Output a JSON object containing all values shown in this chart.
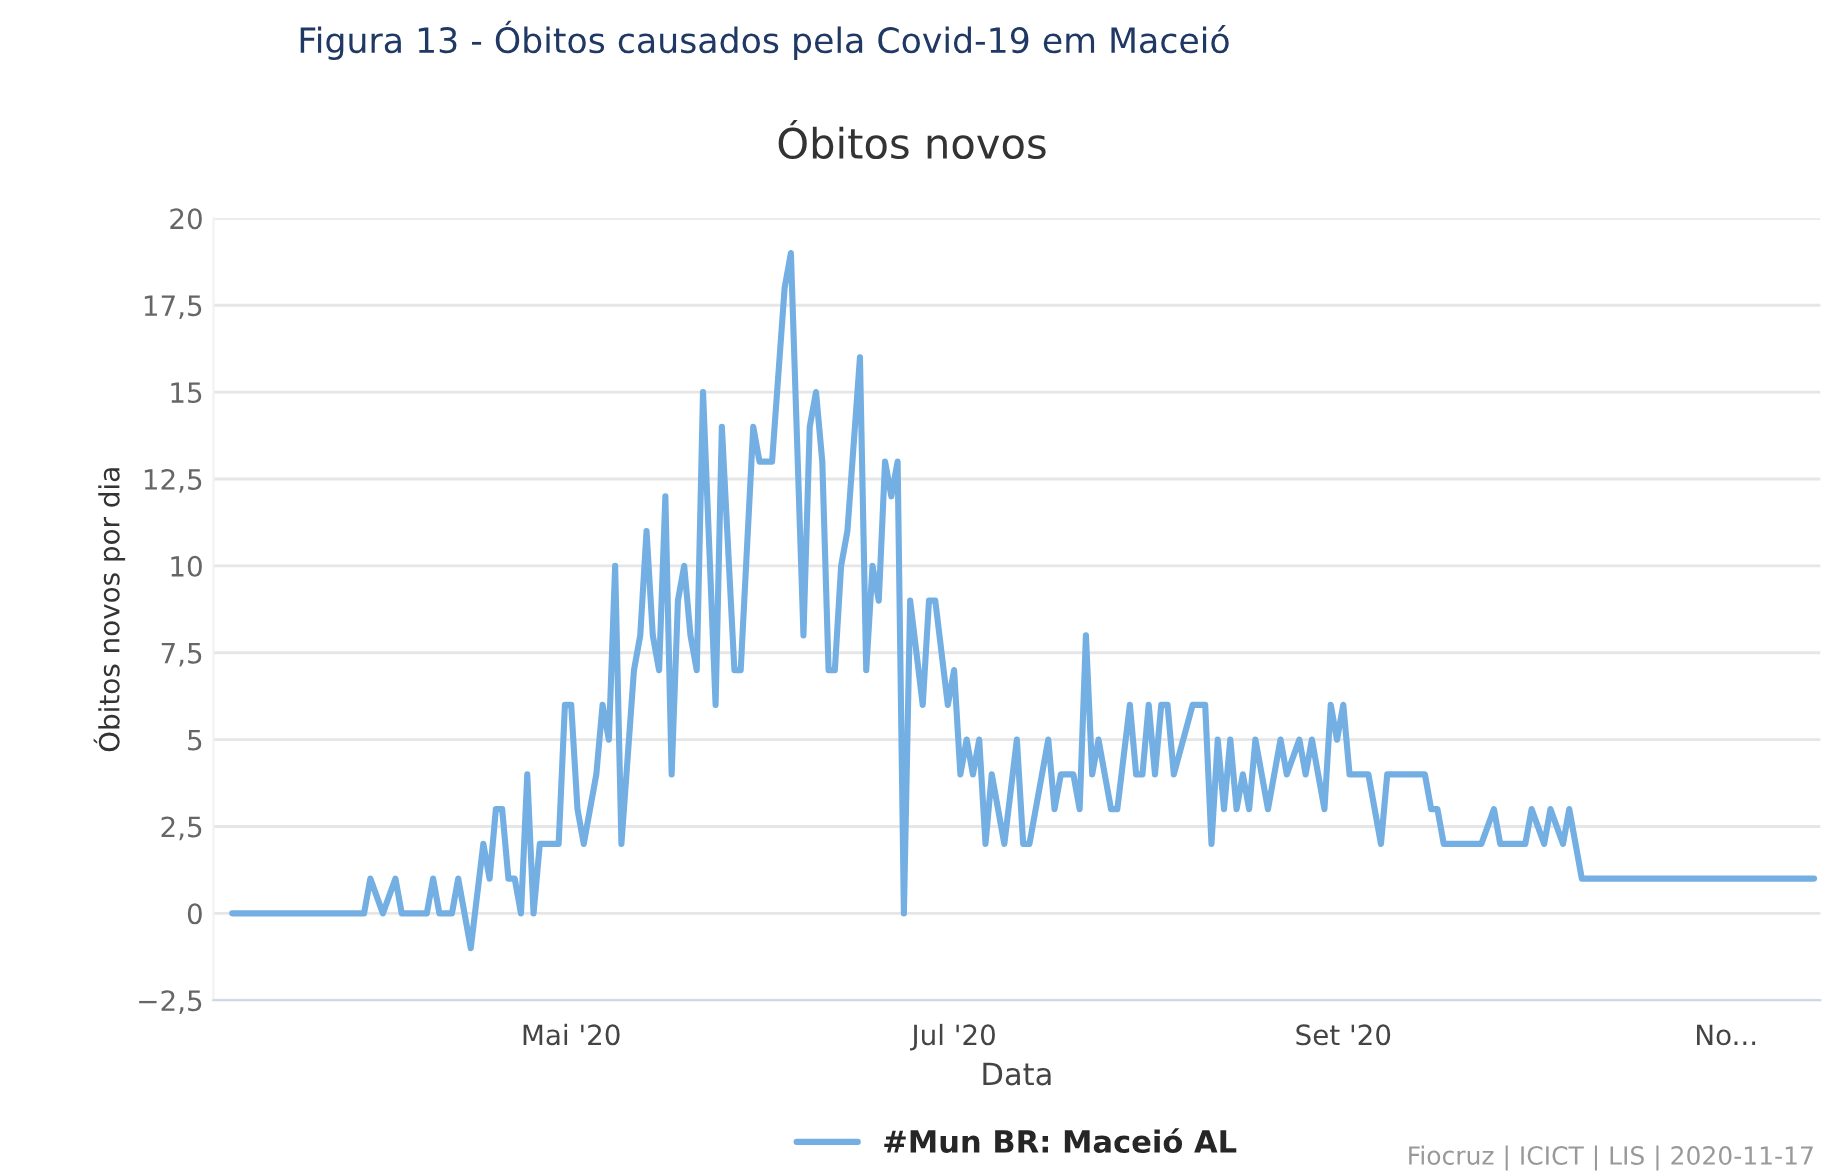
{
  "chart_data": {
    "type": "line",
    "title": "Óbitos novos",
    "xlabel": "Data",
    "ylabel": "Óbitos novos por dia",
    "annotations": [
      "Figura 13 - Óbitos causados pela Covid-19 em Maceió",
      "Fiocruz | ICICT | LIS | 2020-11-17"
    ],
    "x": [
      "2020-03-08",
      "2020-03-29",
      "2020-03-30",
      "2020-04-01",
      "2020-04-03",
      "2020-04-04",
      "2020-04-08",
      "2020-04-09",
      "2020-04-10",
      "2020-04-12",
      "2020-04-13",
      "2020-04-15",
      "2020-04-17",
      "2020-04-18",
      "2020-04-19",
      "2020-04-20",
      "2020-04-21",
      "2020-04-22",
      "2020-04-23",
      "2020-04-24",
      "2020-04-25",
      "2020-04-26",
      "2020-04-29",
      "2020-04-30",
      "2020-05-01",
      "2020-05-02",
      "2020-05-03",
      "2020-05-05",
      "2020-05-06",
      "2020-05-07",
      "2020-05-08",
      "2020-05-09",
      "2020-05-11",
      "2020-05-12",
      "2020-05-13",
      "2020-05-14",
      "2020-05-15",
      "2020-05-16",
      "2020-05-17",
      "2020-05-18",
      "2020-05-19",
      "2020-05-20",
      "2020-05-21",
      "2020-05-22",
      "2020-05-24",
      "2020-05-25",
      "2020-05-27",
      "2020-05-28",
      "2020-05-30",
      "2020-05-31",
      "2020-06-02",
      "2020-06-04",
      "2020-06-05",
      "2020-06-07",
      "2020-06-08",
      "2020-06-09",
      "2020-06-10",
      "2020-06-11",
      "2020-06-12",
      "2020-06-13",
      "2020-06-14",
      "2020-06-16",
      "2020-06-17",
      "2020-06-18",
      "2020-06-19",
      "2020-06-20",
      "2020-06-21",
      "2020-06-22",
      "2020-06-23",
      "2020-06-24",
      "2020-06-26",
      "2020-06-27",
      "2020-06-28",
      "2020-06-30",
      "2020-07-01",
      "2020-07-02",
      "2020-07-03",
      "2020-07-04",
      "2020-07-05",
      "2020-07-06",
      "2020-07-07",
      "2020-07-09",
      "2020-07-11",
      "2020-07-12",
      "2020-07-13",
      "2020-07-16",
      "2020-07-17",
      "2020-07-18",
      "2020-07-20",
      "2020-07-21",
      "2020-07-22",
      "2020-07-23",
      "2020-07-24",
      "2020-07-26",
      "2020-07-27",
      "2020-07-29",
      "2020-07-30",
      "2020-07-31",
      "2020-08-01",
      "2020-08-02",
      "2020-08-03",
      "2020-08-04",
      "2020-08-05",
      "2020-08-08",
      "2020-08-10",
      "2020-08-11",
      "2020-08-12",
      "2020-08-13",
      "2020-08-14",
      "2020-08-15",
      "2020-08-16",
      "2020-08-17",
      "2020-08-18",
      "2020-08-20",
      "2020-08-22",
      "2020-08-23",
      "2020-08-25",
      "2020-08-26",
      "2020-08-27",
      "2020-08-28",
      "2020-08-29",
      "2020-08-30",
      "2020-08-31",
      "2020-09-01",
      "2020-09-02",
      "2020-09-05",
      "2020-09-07",
      "2020-09-08",
      "2020-09-14",
      "2020-09-15",
      "2020-09-16",
      "2020-09-17",
      "2020-09-23",
      "2020-09-25",
      "2020-09-26",
      "2020-09-30",
      "2020-10-01",
      "2020-10-03",
      "2020-10-04",
      "2020-10-06",
      "2020-10-07",
      "2020-10-09",
      "2020-11-15"
    ],
    "series": [
      {
        "name": "#Mun BR: Maceió AL",
        "color": "#74afe3",
        "values": [
          0,
          0,
          1,
          0,
          1,
          0,
          0,
          1,
          0,
          0,
          1,
          -1,
          2,
          1,
          3,
          3,
          1,
          1,
          0,
          4,
          0,
          2,
          2,
          6,
          6,
          3,
          2,
          4,
          6,
          5,
          10,
          2,
          7,
          8,
          11,
          8,
          7,
          12,
          4,
          9,
          10,
          8,
          7,
          15,
          6,
          14,
          7,
          7,
          14,
          13,
          13,
          18,
          19,
          8,
          14,
          15,
          13,
          7,
          7,
          10,
          11,
          16,
          7,
          10,
          9,
          13,
          12,
          13,
          0,
          9,
          6,
          9,
          9,
          6,
          7,
          4,
          5,
          4,
          5,
          2,
          4,
          2,
          5,
          2,
          2,
          5,
          3,
          4,
          4,
          3,
          8,
          4,
          5,
          3,
          3,
          6,
          4,
          4,
          6,
          4,
          6,
          6,
          4,
          6,
          6,
          2,
          5,
          3,
          5,
          3,
          4,
          3,
          5,
          3,
          5,
          4,
          5,
          4,
          5,
          4,
          3,
          6,
          5,
          6,
          4,
          4,
          2,
          4,
          4,
          3,
          3,
          2,
          2,
          3,
          2,
          2,
          3,
          2,
          3,
          2,
          3,
          1,
          1
        ]
      }
    ],
    "xlim": [
      "2020-03-05",
      "2020-11-16"
    ],
    "xticks": [
      {
        "value": "2020-05-01",
        "label": "Mai '20"
      },
      {
        "value": "2020-07-01",
        "label": "Jul '20"
      },
      {
        "value": "2020-09-01",
        "label": "Set '20"
      },
      {
        "value": "2020-11-01",
        "label": "No..."
      }
    ],
    "ylim": [
      -2.5,
      20
    ],
    "yticks": [
      {
        "value": -2.5,
        "label": "−2,5"
      },
      0,
      {
        "value": 2.5,
        "label": "2,5"
      },
      5,
      {
        "value": 7.5,
        "label": "7,5"
      },
      10,
      {
        "value": 12.5,
        "label": "12,5"
      },
      15,
      {
        "value": 17.5,
        "label": "17,5"
      },
      20
    ],
    "grid": "y",
    "legend": "bottom",
    "marker": "none",
    "line_style": "solid"
  }
}
